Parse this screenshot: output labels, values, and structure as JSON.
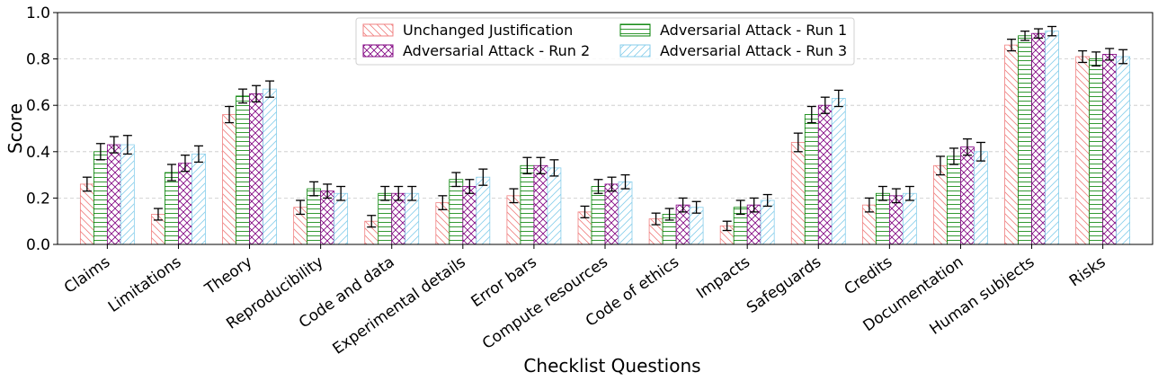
{
  "chart_data": {
    "type": "bar",
    "xlabel": "Checklist Questions",
    "ylabel": "Score",
    "ylim": [
      0,
      1.0
    ],
    "yticks": [
      0.0,
      0.2,
      0.4,
      0.6,
      0.8,
      1.0
    ],
    "ytick_labels": [
      "0.0",
      "0.2",
      "0.4",
      "0.6",
      "0.8",
      "1.0"
    ],
    "grid": "horizontal dashed",
    "legend_position": "top-center",
    "categories": [
      "Claims",
      "Limitations",
      "Theory",
      "Reproducibility",
      "Code and data",
      "Experimental details",
      "Error bars",
      "Compute resources",
      "Code of ethics",
      "Impacts",
      "Safeguards",
      "Credits",
      "Documentation",
      "Human subjects",
      "Risks"
    ],
    "series": [
      {
        "name": "Unchanged Justification",
        "color": "#f08080",
        "hatch": "diagonal",
        "values": [
          0.26,
          0.13,
          0.56,
          0.16,
          0.1,
          0.18,
          0.21,
          0.14,
          0.11,
          0.08,
          0.44,
          0.17,
          0.34,
          0.86,
          0.81
        ],
        "errors": [
          0.03,
          0.025,
          0.035,
          0.03,
          0.025,
          0.03,
          0.03,
          0.025,
          0.025,
          0.02,
          0.04,
          0.03,
          0.04,
          0.025,
          0.025
        ]
      },
      {
        "name": "Adversarial Attack - Run 1",
        "color": "#008000",
        "hatch": "horizontal",
        "values": [
          0.4,
          0.31,
          0.64,
          0.24,
          0.22,
          0.28,
          0.34,
          0.25,
          0.13,
          0.16,
          0.56,
          0.22,
          0.38,
          0.9,
          0.8
        ],
        "errors": [
          0.035,
          0.035,
          0.03,
          0.03,
          0.03,
          0.03,
          0.035,
          0.03,
          0.025,
          0.03,
          0.035,
          0.03,
          0.035,
          0.02,
          0.03
        ]
      },
      {
        "name": "Adversarial Attack - Run 2",
        "color": "#800080",
        "hatch": "cross",
        "values": [
          0.43,
          0.35,
          0.65,
          0.23,
          0.22,
          0.25,
          0.34,
          0.26,
          0.17,
          0.17,
          0.6,
          0.21,
          0.42,
          0.91,
          0.82
        ],
        "errors": [
          0.035,
          0.035,
          0.035,
          0.03,
          0.03,
          0.03,
          0.035,
          0.03,
          0.03,
          0.03,
          0.035,
          0.03,
          0.035,
          0.02,
          0.025
        ]
      },
      {
        "name": "Adversarial Attack - Run 3",
        "color": "#87ceeb",
        "hatch": "diagonal-right",
        "values": [
          0.43,
          0.39,
          0.67,
          0.22,
          0.22,
          0.29,
          0.33,
          0.27,
          0.16,
          0.19,
          0.63,
          0.22,
          0.4,
          0.92,
          0.81
        ],
        "errors": [
          0.04,
          0.035,
          0.035,
          0.03,
          0.03,
          0.035,
          0.035,
          0.03,
          0.025,
          0.025,
          0.035,
          0.03,
          0.04,
          0.02,
          0.03
        ]
      }
    ]
  }
}
